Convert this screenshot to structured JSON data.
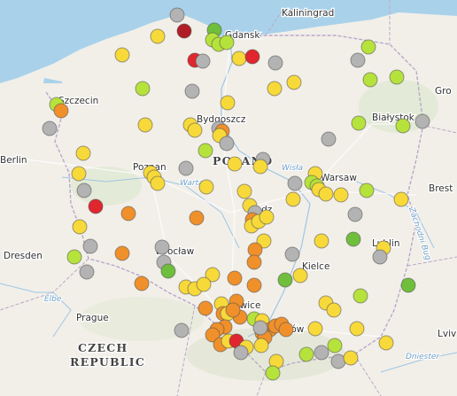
{
  "colors": {
    "grey": "#b3b3b3",
    "lime": "#b6e23c",
    "yellow": "#f7d93a",
    "orange": "#f0902b",
    "red": "#e0262e",
    "darkred": "#b11d24",
    "green": "#6fbf3c"
  },
  "labels": [
    {
      "name": "Kaliningrad",
      "kind": "city"
    },
    {
      "name": "Gdansk",
      "kind": "city"
    },
    {
      "name": "Szczecin",
      "kind": "city"
    },
    {
      "name": "Bydgoszcz",
      "kind": "city"
    },
    {
      "name": "Białystok",
      "kind": "city"
    },
    {
      "name": "Gro",
      "kind": "city"
    },
    {
      "name": "Berlin",
      "kind": "city"
    },
    {
      "name": "Poznan",
      "kind": "city"
    },
    {
      "name": "POLAND",
      "kind": "country"
    },
    {
      "name": "Warsaw",
      "kind": "city"
    },
    {
      "name": "Brest",
      "kind": "city"
    },
    {
      "name": "Lodz",
      "kind": "city"
    },
    {
      "name": "Wrocław",
      "kind": "city"
    },
    {
      "name": "Dresden",
      "kind": "city"
    },
    {
      "name": "Kielce",
      "kind": "city"
    },
    {
      "name": "Lublin",
      "kind": "city"
    },
    {
      "name": "Katowice",
      "kind": "city"
    },
    {
      "name": "Kraków",
      "kind": "city"
    },
    {
      "name": "Prague",
      "kind": "city"
    },
    {
      "name": "CZECH",
      "kind": "country"
    },
    {
      "name": "REPUBLIC",
      "kind": "country"
    },
    {
      "name": "Lviv",
      "kind": "city"
    },
    {
      "name": "Wisła",
      "kind": "river"
    },
    {
      "name": "Warta",
      "kind": "river"
    },
    {
      "name": "Elbe",
      "kind": "river"
    },
    {
      "name": "Zachodni Bug",
      "kind": "river"
    },
    {
      "name": "Dniester",
      "kind": "river"
    }
  ]
}
